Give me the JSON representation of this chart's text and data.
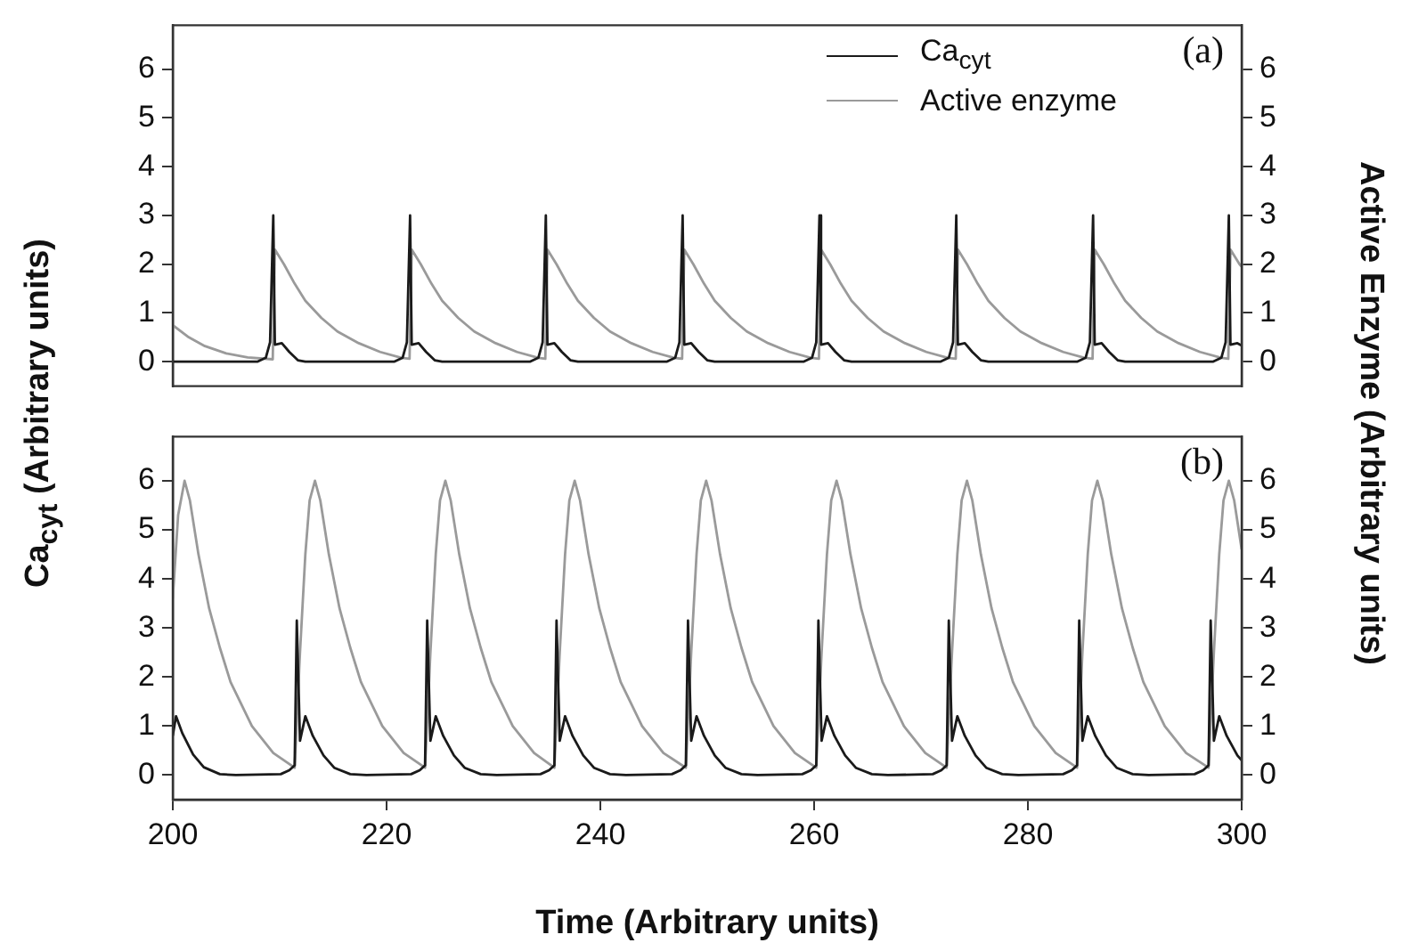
{
  "chart_data": [
    {
      "type": "line",
      "annotations": [
        "(a)"
      ],
      "legend": "top right",
      "ylabel": "Ca$_{cyt}$ (Arbitrary units)",
      "y2label": "Active Enzyme (Arbitrary units)",
      "tick_labels": "y",
      "xlim": [
        200,
        300
      ],
      "xticks": [
        200,
        220,
        240,
        260,
        280,
        300
      ],
      "ylim": [
        -0.5,
        6.9
      ],
      "yticks": [
        0,
        1,
        2,
        3,
        4,
        5,
        6
      ],
      "y2lim": [
        -0.5,
        6.9
      ],
      "y2ticks": [
        0,
        1,
        2,
        3,
        4,
        5,
        6
      ],
      "series": [
        {
          "name": "Ca$_{cyt}$",
          "color": "#1a1a1a",
          "x": [
            200,
            207.9,
            208.7,
            209.1,
            209.4,
            209.55,
            210.2,
            210.9,
            211.7,
            212.4,
            220.7,
            221.5,
            221.9,
            222.2,
            222.35,
            223.0,
            223.7,
            224.5,
            225.2,
            233.4,
            234.2,
            234.6,
            234.9,
            235.05,
            235.7,
            236.4,
            237.2,
            237.9,
            246.2,
            247.0,
            247.4,
            247.7,
            247.85,
            248.5,
            249.2,
            250.0,
            250.7,
            259.0,
            259.8,
            260.2,
            260.5,
            260.65,
            261.3,
            262.0,
            262.8,
            263.5,
            271.8,
            272.6,
            273.0,
            273.3,
            273.45,
            274.1,
            274.8,
            275.6,
            276.3,
            284.6,
            285.4,
            285.8,
            286.1,
            286.25,
            286.9,
            287.6,
            288.4,
            289.1,
            297.3,
            298.1,
            298.5,
            298.8,
            298.95,
            299.6,
            300
          ],
          "values": [
            0,
            0,
            0.08,
            0.4,
            3.0,
            0.35,
            0.38,
            0.2,
            0.03,
            0,
            0,
            0.08,
            0.4,
            3.0,
            0.35,
            0.38,
            0.2,
            0.03,
            0,
            0,
            0.08,
            0.4,
            3.0,
            0.35,
            0.38,
            0.2,
            0.03,
            0,
            0,
            0.08,
            0.4,
            3.0,
            0.35,
            0.38,
            0.2,
            0.03,
            0,
            0,
            0.08,
            0.4,
            3.0,
            0.35,
            0.38,
            0.2,
            0.03,
            0,
            0,
            0.08,
            0.4,
            3.0,
            0.35,
            0.38,
            0.2,
            0.03,
            0,
            0,
            0.08,
            0.4,
            3.0,
            0.35,
            0.38,
            0.2,
            0.03,
            0,
            0,
            0.08,
            0.4,
            3.0,
            0.35,
            0.38,
            0.33
          ]
        },
        {
          "name": "Active enzyme",
          "color": "#9a9a9a",
          "x": [
            200,
            201.5,
            203,
            205,
            207,
            209.35,
            209.55,
            210.4,
            211.4,
            212.4,
            213.9,
            215.4,
            217.4,
            219.4,
            221.4,
            222.15,
            222.35,
            223.2,
            224.2,
            225.2,
            226.7,
            228.2,
            230.2,
            232.2,
            234.2,
            234.85,
            235.05,
            235.9,
            236.9,
            237.9,
            239.4,
            240.9,
            242.9,
            244.9,
            246.9,
            247.65,
            247.85,
            248.7,
            249.7,
            250.7,
            252.2,
            253.7,
            255.7,
            257.7,
            259.7,
            260.45,
            260.65,
            261.5,
            262.5,
            263.5,
            265.0,
            266.5,
            268.5,
            270.5,
            272.5,
            273.25,
            273.45,
            274.3,
            275.3,
            276.3,
            277.8,
            279.3,
            281.3,
            283.3,
            285.3,
            286.05,
            286.25,
            287.1,
            288.1,
            289.1,
            290.6,
            292.1,
            294.1,
            296.1,
            298.1,
            298.75,
            298.95,
            299.8,
            300
          ],
          "values": [
            0.75,
            0.5,
            0.32,
            0.17,
            0.09,
            0.05,
            2.3,
            2.0,
            1.6,
            1.25,
            0.9,
            0.62,
            0.38,
            0.2,
            0.08,
            0.06,
            2.3,
            2.0,
            1.6,
            1.25,
            0.9,
            0.62,
            0.38,
            0.2,
            0.08,
            0.06,
            2.3,
            2.0,
            1.6,
            1.25,
            0.9,
            0.62,
            0.38,
            0.2,
            0.08,
            0.06,
            2.3,
            2.0,
            1.6,
            1.25,
            0.9,
            0.62,
            0.38,
            0.2,
            0.08,
            0.06,
            2.3,
            2.0,
            1.6,
            1.25,
            0.9,
            0.62,
            0.38,
            0.2,
            0.08,
            0.06,
            2.3,
            2.0,
            1.6,
            1.25,
            0.9,
            0.62,
            0.38,
            0.2,
            0.08,
            0.06,
            2.3,
            2.0,
            1.6,
            1.25,
            0.9,
            0.62,
            0.38,
            0.2,
            0.08,
            0.06,
            2.3,
            2.0,
            1.95
          ]
        }
      ]
    },
    {
      "type": "line",
      "annotations": [
        "(b)"
      ],
      "xlabel": "Time (Arbitrary units)",
      "xlim": [
        200,
        300
      ],
      "xticks": [
        200,
        220,
        240,
        260,
        280,
        300
      ],
      "ylim": [
        -0.5,
        6.9
      ],
      "yticks": [
        0,
        1,
        2,
        3,
        4,
        5,
        6
      ],
      "y2lim": [
        -0.5,
        6.9
      ],
      "y2ticks": [
        0,
        1,
        2,
        3,
        4,
        5,
        6
      ],
      "series": [
        {
          "color": "#1a1a1a",
          "x": [
            200,
            200.3,
            200.9,
            201.9,
            202.9,
            204.4,
            205.9,
            210.1,
            210.9,
            211.4,
            211.6,
            211.9,
            212.4,
            213.1,
            214.1,
            215.1,
            216.6,
            218.1,
            222.3,
            223.1,
            223.6,
            223.8,
            224.1,
            224.6,
            225.3,
            226.3,
            227.3,
            228.8,
            230.3,
            234.4,
            235.2,
            235.7,
            235.9,
            236.2,
            236.7,
            237.4,
            238.4,
            239.4,
            240.9,
            242.4,
            246.7,
            247.5,
            248.0,
            248.2,
            248.5,
            249.0,
            249.7,
            250.7,
            251.7,
            253.2,
            254.7,
            258.9,
            259.7,
            260.2,
            260.4,
            260.7,
            261.2,
            261.9,
            262.9,
            263.9,
            265.4,
            266.9,
            271.1,
            271.9,
            272.4,
            272.6,
            272.9,
            273.4,
            274.1,
            275.1,
            276.1,
            277.6,
            279.1,
            283.3,
            284.1,
            284.6,
            284.8,
            285.1,
            285.6,
            286.3,
            287.3,
            288.3,
            289.8,
            291.3,
            295.6,
            296.4,
            296.9,
            297.1,
            297.4,
            297.9,
            298.6,
            299.6,
            300
          ],
          "values": [
            0.8,
            1.2,
            0.85,
            0.42,
            0.16,
            0.02,
            0,
            0.02,
            0.1,
            0.2,
            3.15,
            0.7,
            1.2,
            0.8,
            0.4,
            0.15,
            0.02,
            0,
            0.02,
            0.1,
            0.2,
            3.15,
            0.7,
            1.2,
            0.8,
            0.4,
            0.15,
            0.02,
            0,
            0.02,
            0.1,
            0.2,
            3.15,
            0.7,
            1.2,
            0.8,
            0.4,
            0.15,
            0.02,
            0,
            0.02,
            0.1,
            0.2,
            3.15,
            0.7,
            1.2,
            0.8,
            0.4,
            0.15,
            0.02,
            0,
            0.02,
            0.1,
            0.2,
            3.15,
            0.7,
            1.2,
            0.8,
            0.4,
            0.15,
            0.02,
            0,
            0.02,
            0.1,
            0.2,
            3.15,
            0.7,
            1.2,
            0.8,
            0.4,
            0.15,
            0.02,
            0,
            0.02,
            0.1,
            0.2,
            3.15,
            0.7,
            1.2,
            0.8,
            0.4,
            0.15,
            0.02,
            0,
            0.02,
            0.1,
            0.2,
            3.15,
            0.7,
            1.2,
            0.8,
            0.4,
            0.3
          ]
        },
        {
          "color": "#9a9a9a",
          "x": [
            200,
            200.5,
            201.1,
            201.6,
            202.4,
            203.4,
            204.4,
            205.4,
            207.4,
            209.4,
            211.4,
            211.9,
            212.4,
            212.8,
            213.3,
            213.8,
            214.6,
            215.6,
            216.6,
            217.6,
            219.6,
            221.6,
            223.6,
            224.1,
            224.6,
            225.0,
            225.5,
            226.0,
            226.8,
            227.8,
            228.8,
            229.8,
            231.8,
            233.8,
            235.7,
            236.2,
            236.7,
            237.1,
            237.6,
            238.1,
            238.9,
            239.9,
            240.9,
            241.9,
            243.9,
            245.9,
            248.0,
            248.5,
            249.0,
            249.4,
            249.9,
            250.4,
            251.2,
            252.2,
            253.2,
            254.2,
            256.2,
            258.2,
            260.2,
            260.7,
            261.2,
            261.6,
            262.1,
            262.6,
            263.4,
            264.4,
            265.4,
            266.4,
            268.4,
            270.4,
            272.4,
            272.9,
            273.4,
            273.8,
            274.3,
            274.8,
            275.6,
            276.6,
            277.6,
            278.6,
            280.6,
            282.6,
            284.6,
            285.1,
            285.6,
            286.0,
            286.5,
            287.0,
            287.8,
            288.8,
            289.8,
            290.8,
            292.8,
            294.8,
            296.9,
            297.4,
            297.9,
            298.3,
            298.8,
            299.3,
            300
          ],
          "values": [
            3.6,
            5.3,
            6.0,
            5.6,
            4.5,
            3.4,
            2.6,
            1.9,
            1.0,
            0.45,
            0.15,
            2.5,
            4.5,
            5.6,
            6.0,
            5.6,
            4.5,
            3.4,
            2.6,
            1.9,
            1.0,
            0.45,
            0.15,
            2.5,
            4.5,
            5.6,
            6.0,
            5.6,
            4.5,
            3.4,
            2.6,
            1.9,
            1.0,
            0.45,
            0.15,
            2.5,
            4.5,
            5.6,
            6.0,
            5.6,
            4.5,
            3.4,
            2.6,
            1.9,
            1.0,
            0.45,
            0.15,
            2.5,
            4.5,
            5.6,
            6.0,
            5.6,
            4.5,
            3.4,
            2.6,
            1.9,
            1.0,
            0.45,
            0.15,
            2.5,
            4.5,
            5.6,
            6.0,
            5.6,
            4.5,
            3.4,
            2.6,
            1.9,
            1.0,
            0.45,
            0.15,
            2.5,
            4.5,
            5.6,
            6.0,
            5.6,
            4.5,
            3.4,
            2.6,
            1.9,
            1.0,
            0.45,
            0.15,
            2.5,
            4.5,
            5.6,
            6.0,
            5.6,
            4.5,
            3.4,
            2.6,
            1.9,
            1.0,
            0.45,
            0.15,
            2.5,
            4.5,
            5.6,
            6.0,
            5.6,
            4.6
          ]
        }
      ]
    }
  ]
}
